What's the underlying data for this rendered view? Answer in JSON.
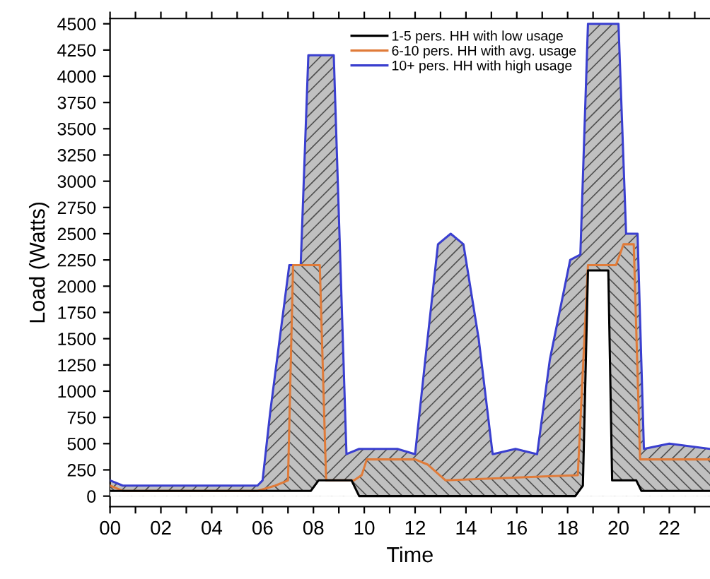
{
  "chart_data": {
    "type": "area",
    "xlabel": "Time",
    "ylabel": "Load (Watts)",
    "xlim": [
      0,
      23.6
    ],
    "ylim": [
      -100,
      4550
    ],
    "xticks": [
      {
        "value": 0,
        "label": "00"
      },
      {
        "value": 1,
        "label": null
      },
      {
        "value": 2,
        "label": "02"
      },
      {
        "value": 3,
        "label": null
      },
      {
        "value": 4,
        "label": "04"
      },
      {
        "value": 5,
        "label": null
      },
      {
        "value": 6,
        "label": "06"
      },
      {
        "value": 7,
        "label": null
      },
      {
        "value": 8,
        "label": "08"
      },
      {
        "value": 9,
        "label": null
      },
      {
        "value": 10,
        "label": "10"
      },
      {
        "value": 11,
        "label": null
      },
      {
        "value": 12,
        "label": "12"
      },
      {
        "value": 13,
        "label": null
      },
      {
        "value": 14,
        "label": "14"
      },
      {
        "value": 15,
        "label": null
      },
      {
        "value": 16,
        "label": "16"
      },
      {
        "value": 17,
        "label": null
      },
      {
        "value": 18,
        "label": "18"
      },
      {
        "value": 19,
        "label": null
      },
      {
        "value": 20,
        "label": "20"
      },
      {
        "value": 21,
        "label": null
      },
      {
        "value": 22,
        "label": "22"
      },
      {
        "value": 23,
        "label": null
      }
    ],
    "yticks": [
      0,
      250,
      500,
      750,
      1000,
      1250,
      1500,
      1750,
      2000,
      2250,
      2500,
      2750,
      3000,
      3250,
      3500,
      3750,
      4000,
      4250,
      4500
    ],
    "grid": false,
    "legend": "top",
    "marker": "none",
    "line_style": "solid",
    "series": [
      {
        "name": "1-5 pers. HH with low usage",
        "color": "#000000",
        "x": [
          0,
          6,
          7.9,
          8.2,
          9.5,
          9.8,
          18.3,
          18.6,
          18.8,
          19.6,
          19.75,
          20.7,
          20.9,
          23.6
        ],
        "values": [
          50,
          50,
          50,
          150,
          150,
          0,
          0,
          100,
          2150,
          2150,
          150,
          150,
          50,
          50
        ]
      },
      {
        "name": "6-10 pers. HH with avg. usage",
        "color": "#e07b39",
        "x": [
          0,
          0.5,
          5.8,
          6.5,
          7.0,
          7.2,
          8.25,
          8.5,
          9.6,
          9.9,
          10.1,
          12.0,
          12.5,
          13.2,
          18.4,
          18.8,
          19.9,
          20.2,
          20.6,
          20.85,
          23.6
        ],
        "values": [
          100,
          50,
          50,
          100,
          150,
          2200,
          2200,
          150,
          150,
          200,
          350,
          350,
          300,
          150,
          200,
          2200,
          2200,
          2400,
          2400,
          350,
          350
        ]
      },
      {
        "name": "10+ pers. HH with high usage",
        "color": "#3a3fcf",
        "x": [
          0,
          0.5,
          5.5,
          5.8,
          6.0,
          6.3,
          7.05,
          7.5,
          7.8,
          8.8,
          9.3,
          9.8,
          11.3,
          12.0,
          12.4,
          12.9,
          13.4,
          13.9,
          14.5,
          15.05,
          15.95,
          16.8,
          17.3,
          18.1,
          18.5,
          18.8,
          20.0,
          20.3,
          20.75,
          21.0,
          22.0,
          23.6
        ],
        "values": [
          150,
          100,
          100,
          100,
          150,
          800,
          2200,
          2200,
          4200,
          4200,
          400,
          450,
          450,
          400,
          1300,
          2400,
          2500,
          2400,
          1500,
          400,
          450,
          400,
          1300,
          2250,
          2300,
          4500,
          4500,
          2500,
          2500,
          450,
          500,
          450
        ]
      }
    ]
  }
}
